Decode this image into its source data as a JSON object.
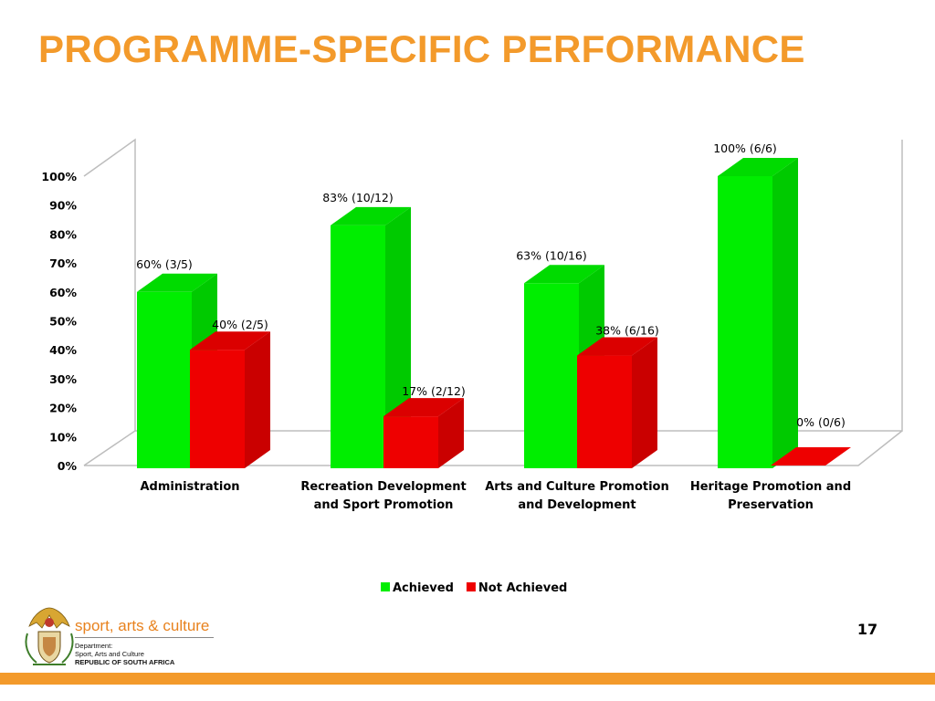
{
  "title": "PROGRAMME-SPECIFIC PERFORMANCE",
  "page_number": "17",
  "brand": {
    "name": "sport, arts & culture",
    "line1": "Department:",
    "line2": "Sport, Arts and Culture",
    "line3": "REPUBLIC OF SOUTH AFRICA"
  },
  "colors": {
    "title": "#F39A2B",
    "achieved": "#00EE00",
    "not_achieved": "#EE0000",
    "footer_bar": "#F39A2B"
  },
  "chart_data": {
    "type": "bar",
    "style": "3d-clustered-column",
    "title": "",
    "xlabel": "",
    "ylabel": "",
    "categories": [
      [
        "Administration"
      ],
      [
        "Recreation Development",
        "and Sport Promotion"
      ],
      [
        "Arts and Culture Promotion",
        "and Development"
      ],
      [
        "Heritage Promotion and",
        "Preservation"
      ]
    ],
    "series": [
      {
        "name": "Achieved",
        "color": "#00EE00",
        "values": [
          60,
          83,
          63,
          100
        ],
        "labels": [
          "60% (3/5)",
          "83% (10/12)",
          "63% (10/16)",
          "100% (6/6)"
        ]
      },
      {
        "name": "Not Achieved",
        "color": "#EE0000",
        "values": [
          40,
          17,
          38,
          0
        ],
        "labels": [
          "40% (2/5)",
          "17% (2/12)",
          "38% (6/16)",
          "0% (0/6)"
        ]
      }
    ],
    "ylim": [
      0,
      100
    ],
    "yticks": [
      "0%",
      "10%",
      "20%",
      "30%",
      "40%",
      "50%",
      "60%",
      "70%",
      "80%",
      "90%",
      "100%"
    ],
    "grid": false,
    "legend": "bottom"
  }
}
